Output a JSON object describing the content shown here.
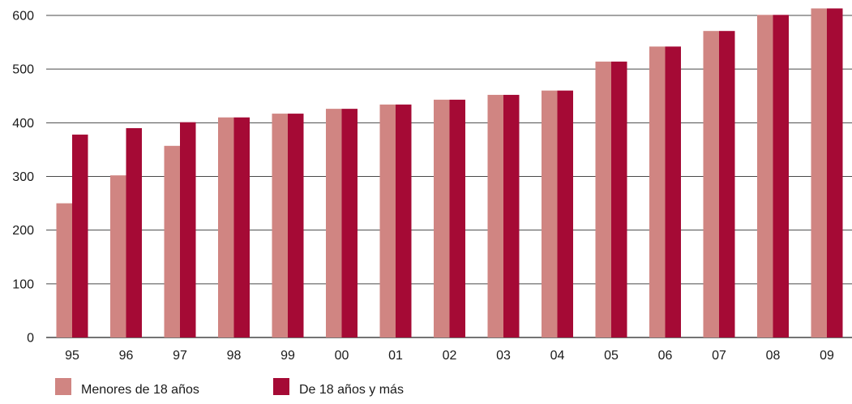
{
  "chart_data": {
    "type": "bar",
    "title": "",
    "xlabel": "",
    "ylabel": "",
    "ylim": [
      0,
      600
    ],
    "yticks": [
      0,
      100,
      200,
      300,
      400,
      500,
      600
    ],
    "grid": true,
    "legend_position": "bottom-left",
    "categories": [
      "95",
      "96",
      "97",
      "98",
      "99",
      "00",
      "01",
      "02",
      "03",
      "04",
      "05",
      "06",
      "07",
      "08",
      "09"
    ],
    "series": [
      {
        "name": "Menores de 18 años",
        "color": "#d08582",
        "values": [
          250,
          302,
          357,
          410,
          417,
          426,
          434,
          443,
          452,
          460,
          514,
          542,
          571,
          601,
          613
        ]
      },
      {
        "name": "De 18 años y más",
        "color": "#a50a35",
        "values": [
          378,
          390,
          401,
          410,
          417,
          426,
          434,
          443,
          452,
          460,
          514,
          542,
          571,
          601,
          613
        ]
      }
    ]
  }
}
